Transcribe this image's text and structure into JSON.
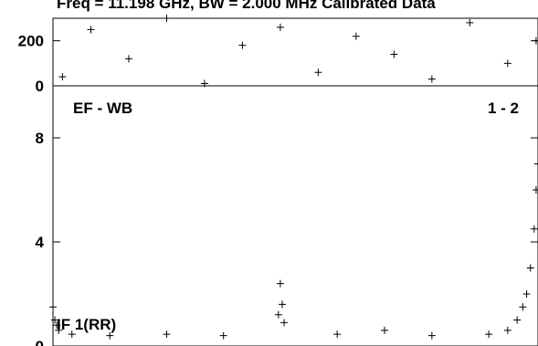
{
  "title": "Freq = 11.198 GHz, BW = 2.000 MHz Calibrated Data",
  "chart_data": [
    {
      "type": "scatter",
      "panel": "phase",
      "marker": "+",
      "ylim": [
        0,
        300
      ],
      "y_ticks": [
        0,
        200
      ],
      "y_tick_labels": [
        "0",
        "200"
      ],
      "xlim": [
        0,
        256
      ],
      "series": [
        {
          "points": [
            [
              5,
              40
            ],
            [
              20,
              250
            ],
            [
              40,
              120
            ],
            [
              60,
              300
            ],
            [
              80,
              10
            ],
            [
              100,
              180
            ],
            [
              120,
              260
            ],
            [
              140,
              60
            ],
            [
              160,
              220
            ],
            [
              180,
              140
            ],
            [
              200,
              30
            ],
            [
              220,
              280
            ],
            [
              240,
              100
            ],
            [
              255,
              200
            ]
          ]
        }
      ]
    },
    {
      "type": "scatter",
      "panel": "amplitude",
      "marker": "+",
      "baseline_label": "EF - WB",
      "corr_label": "1 - 2",
      "if_label": "IF 1(RR)",
      "ylim": [
        0,
        10
      ],
      "y_ticks": [
        0,
        4,
        8
      ],
      "y_tick_labels": [
        "0",
        "4",
        "8"
      ],
      "xlim": [
        0,
        256
      ],
      "series": [
        {
          "points": [
            [
              0,
              1.5
            ],
            [
              1,
              1.0
            ],
            [
              2,
              0.8
            ],
            [
              3,
              0.6
            ],
            [
              10,
              0.45
            ],
            [
              30,
              0.4
            ],
            [
              60,
              0.45
            ],
            [
              90,
              0.4
            ],
            [
              119,
              1.2
            ],
            [
              120,
              2.4
            ],
            [
              121,
              1.6
            ],
            [
              122,
              0.9
            ],
            [
              150,
              0.45
            ],
            [
              175,
              0.6
            ],
            [
              200,
              0.4
            ],
            [
              230,
              0.45
            ],
            [
              240,
              0.6
            ],
            [
              245,
              1.0
            ],
            [
              248,
              1.5
            ],
            [
              250,
              2.0
            ],
            [
              252,
              3.0
            ],
            [
              254,
              4.5
            ],
            [
              255,
              6.0
            ],
            [
              256,
              7.0
            ]
          ]
        }
      ]
    }
  ]
}
